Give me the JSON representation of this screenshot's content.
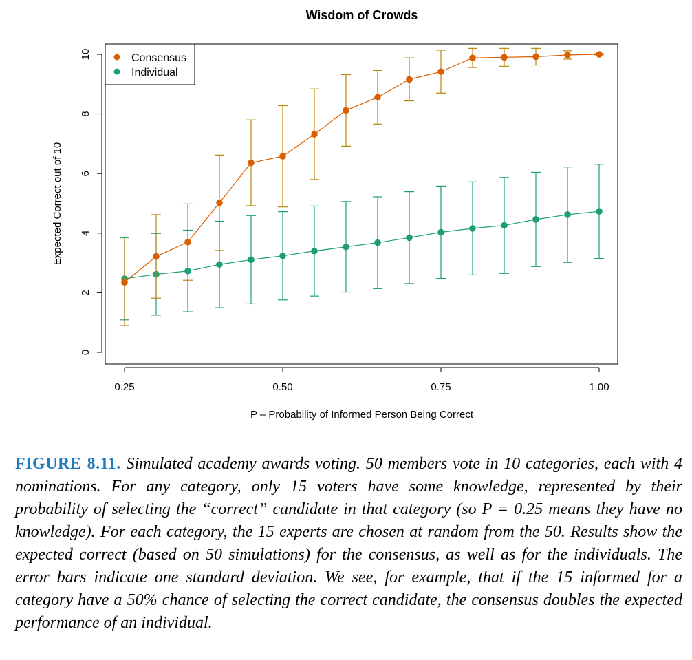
{
  "chart_data": {
    "type": "line",
    "title": "Wisdom of Crowds",
    "xlabel": "P –  Probability of Informed Person Being Correct",
    "ylabel": "Expected Correct out of 10",
    "x": [
      0.25,
      0.3,
      0.35,
      0.4,
      0.45,
      0.5,
      0.55,
      0.6,
      0.65,
      0.7,
      0.75,
      0.8,
      0.85,
      0.9,
      0.95,
      1.0
    ],
    "xlim": [
      0.25,
      1.0
    ],
    "ylim": [
      0,
      10
    ],
    "xticks": [
      "0.25",
      "0.50",
      "0.75",
      "1.00"
    ],
    "xtick_values": [
      0.25,
      0.5,
      0.75,
      1.0
    ],
    "yticks": [
      "0",
      "2",
      "4",
      "6",
      "8",
      "10"
    ],
    "ytick_values": [
      0,
      2,
      4,
      6,
      8,
      10
    ],
    "grid": false,
    "legend_position": "top-left",
    "series": [
      {
        "name": "Consensus",
        "color": "#d95f02",
        "errorbar_color": "#b8860b",
        "values": [
          2.35,
          3.22,
          3.7,
          5.02,
          6.36,
          6.58,
          7.32,
          8.12,
          8.56,
          9.16,
          9.42,
          9.88,
          9.9,
          9.92,
          9.98,
          10.0
        ],
        "sd": [
          1.45,
          1.4,
          1.28,
          1.6,
          1.44,
          1.7,
          1.52,
          1.2,
          0.9,
          0.72,
          0.72,
          0.32,
          0.3,
          0.28,
          0.14,
          0.02
        ]
      },
      {
        "name": "Individual",
        "color": "#1b9e77",
        "errorbar_color": "#1b9e77",
        "values": [
          2.47,
          2.62,
          2.73,
          2.95,
          3.11,
          3.24,
          3.4,
          3.54,
          3.68,
          3.85,
          4.03,
          4.16,
          4.26,
          4.46,
          4.62,
          4.73
        ],
        "sd": [
          1.38,
          1.37,
          1.37,
          1.45,
          1.48,
          1.48,
          1.51,
          1.52,
          1.54,
          1.54,
          1.55,
          1.56,
          1.61,
          1.58,
          1.6,
          1.58
        ]
      }
    ]
  },
  "caption": {
    "label": "FIGURE 8.11.",
    "text": "Simulated academy awards voting. 50 members vote in 10 categories, each with 4 nominations. For any category, only 15 voters have some knowledge, represented by their probability of selecting the “correct” candidate in that category (so P = 0.25 means they have no knowledge). For each category, the 15 experts are chosen at random from the 50. Results show the expected correct (based on 50 simulations) for the consensus, as well as for the individuals. The error bars indicate one standard deviation. We see, for example, that if the 15 informed for a category have a 50% chance of selecting the correct candidate, the consensus doubles the expected performance of an individual."
  }
}
